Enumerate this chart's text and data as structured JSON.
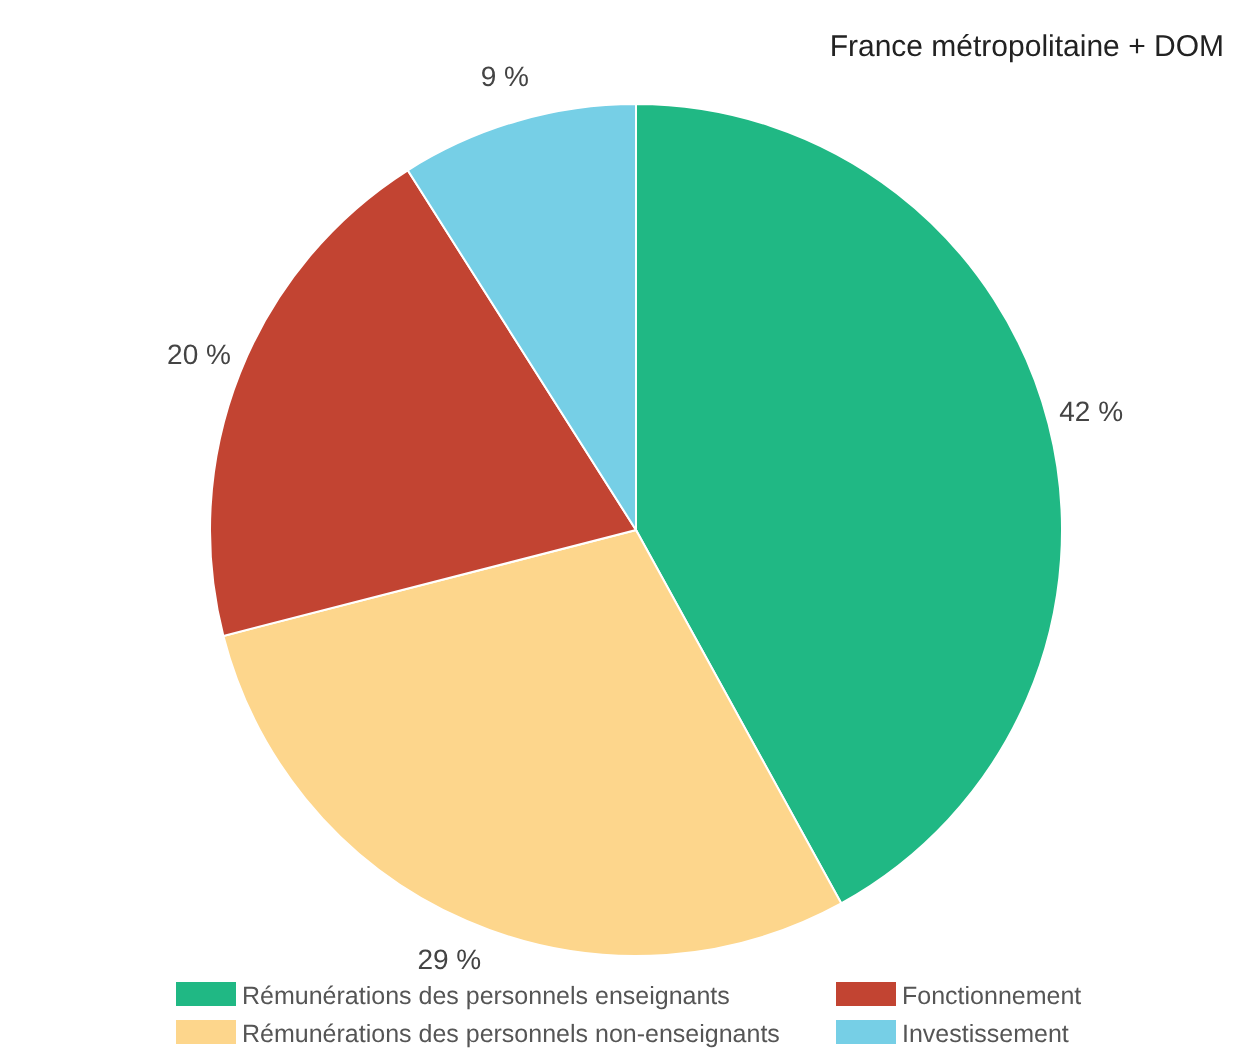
{
  "chart_data": {
    "type": "pie",
    "subtitle": "France métropolitaine + DOM",
    "categories": [
      "Rémunérations des personnels enseignants",
      "Rémunérations des personnels non-enseignants",
      "Fonctionnement",
      "Investissement"
    ],
    "values": [
      42,
      29,
      20,
      9
    ],
    "colors": [
      "#20b884",
      "#fdd68c",
      "#c24432",
      "#76cfe6"
    ],
    "value_labels": [
      "42 %",
      "29 %",
      "20 %",
      "9 %"
    ],
    "legend": "bottom"
  }
}
